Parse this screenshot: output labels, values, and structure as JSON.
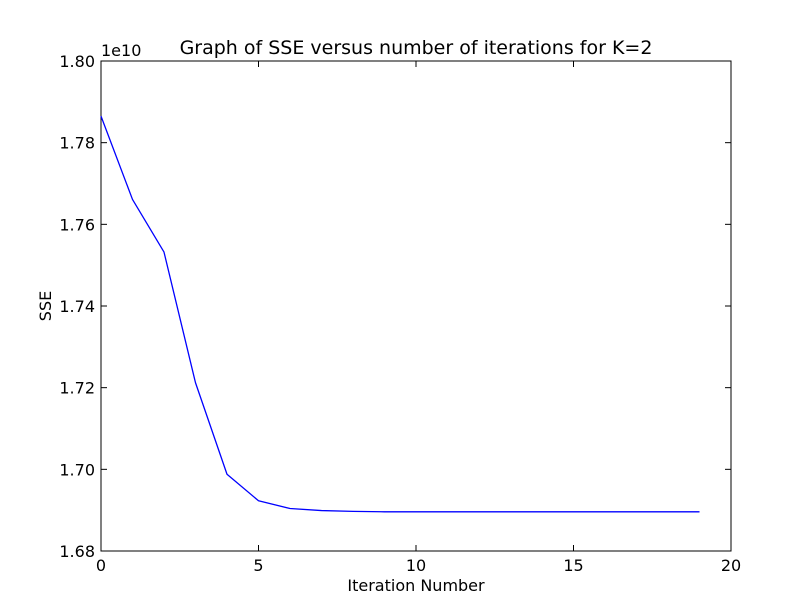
{
  "chart_data": {
    "type": "line",
    "title": "Graph of SSE versus number of iterations for K=2",
    "xlabel": "Iteration Number",
    "ylabel": "SSE",
    "y_offset_label": "1e10",
    "y_multiplier": 10000000000,
    "xlim": [
      0,
      20
    ],
    "ylim": [
      1.68,
      1.8
    ],
    "x_ticks": [
      0,
      5,
      10,
      15,
      20
    ],
    "x_tick_labels": [
      "0",
      "5",
      "10",
      "15",
      "20"
    ],
    "y_ticks": [
      1.68,
      1.7,
      1.72,
      1.74,
      1.76,
      1.78,
      1.8
    ],
    "y_tick_labels": [
      "1.68",
      "1.70",
      "1.72",
      "1.74",
      "1.76",
      "1.78",
      "1.80"
    ],
    "grid": false,
    "legend": "none",
    "series": [
      {
        "color": "#0000ff",
        "x": [
          0,
          1,
          2,
          3,
          4,
          5,
          6,
          7,
          8,
          9,
          10,
          11,
          12,
          13,
          14,
          15,
          16,
          17,
          18,
          19
        ],
        "y": [
          1.7865,
          1.7661,
          1.7532,
          1.7212,
          1.6988,
          1.6923,
          1.6904,
          1.6899,
          1.6897,
          1.6896,
          1.6896,
          1.6896,
          1.6896,
          1.6896,
          1.6896,
          1.6896,
          1.6896,
          1.6896,
          1.6896,
          1.6896
        ]
      }
    ]
  }
}
